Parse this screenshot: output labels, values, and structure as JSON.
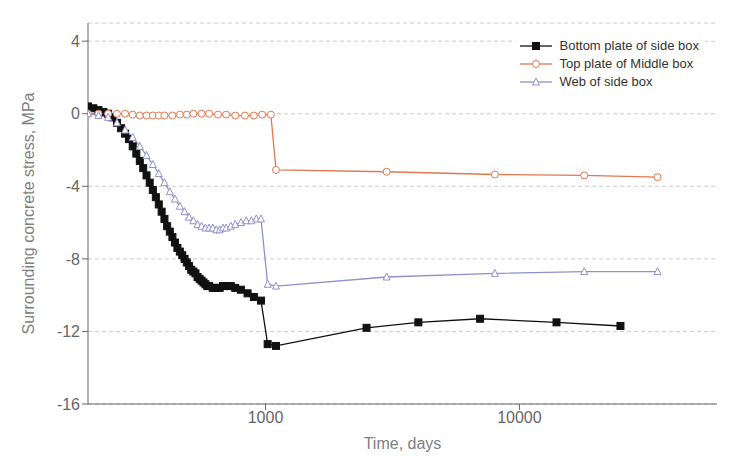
{
  "chart_data": {
    "type": "line",
    "xlabel": "Time, days",
    "ylabel": "Surrounding concrete stress, MPa",
    "log": "x",
    "xlim": [
      200,
      60000
    ],
    "xticks": [
      1000,
      10000
    ],
    "ylim": [
      -16,
      5
    ],
    "yticks": [
      -16,
      -12,
      -8,
      -4,
      0,
      4
    ],
    "grid": "y",
    "legend": "upper right",
    "series": [
      {
        "name": "Bottom plate of side box",
        "color": "#111111",
        "marker": "square",
        "x": [
          200,
          210,
          220,
          230,
          240,
          250,
          260,
          270,
          280,
          290,
          300,
          310,
          320,
          330,
          340,
          350,
          360,
          370,
          380,
          390,
          400,
          410,
          420,
          430,
          440,
          450,
          460,
          470,
          480,
          490,
          500,
          510,
          520,
          530,
          540,
          550,
          560,
          570,
          580,
          590,
          600,
          620,
          640,
          660,
          680,
          700,
          730,
          760,
          800,
          850,
          900,
          960,
          1020,
          1100,
          2500,
          4000,
          7000,
          14000,
          25000
        ],
        "values": [
          0.4,
          0.3,
          0.2,
          0.1,
          0.0,
          -0.2,
          -0.5,
          -0.8,
          -1.1,
          -1.4,
          -1.8,
          -2.2,
          -2.6,
          -3.0,
          -3.4,
          -3.8,
          -4.2,
          -4.6,
          -5.0,
          -5.4,
          -5.8,
          -6.2,
          -6.5,
          -6.8,
          -7.1,
          -7.4,
          -7.6,
          -7.8,
          -8.0,
          -8.2,
          -8.4,
          -8.6,
          -8.7,
          -8.8,
          -9.0,
          -9.1,
          -9.2,
          -9.3,
          -9.4,
          -9.5,
          -9.5,
          -9.6,
          -9.6,
          -9.6,
          -9.5,
          -9.5,
          -9.5,
          -9.6,
          -9.7,
          -9.9,
          -10.1,
          -10.3,
          -12.7,
          -12.8,
          -11.8,
          -11.5,
          -11.3,
          -11.5,
          -11.7
        ]
      },
      {
        "name": "Top plate of Middle box",
        "color": "#e07850",
        "marker": "circle-open",
        "x": [
          200,
          220,
          240,
          260,
          280,
          300,
          320,
          340,
          360,
          380,
          400,
          430,
          460,
          490,
          520,
          560,
          600,
          650,
          700,
          760,
          830,
          900,
          970,
          1050,
          1100,
          3000,
          8000,
          18000,
          35000
        ],
        "values": [
          0.0,
          0.0,
          0.0,
          0.0,
          0.0,
          -0.05,
          -0.1,
          -0.1,
          -0.1,
          -0.1,
          -0.1,
          -0.1,
          -0.05,
          -0.05,
          0.0,
          0.0,
          0.0,
          -0.05,
          -0.05,
          -0.1,
          -0.1,
          -0.1,
          -0.05,
          -0.05,
          -3.1,
          -3.2,
          -3.35,
          -3.4,
          -3.5
        ]
      },
      {
        "name": "Web of side box",
        "color": "#9090cc",
        "marker": "triangle-open",
        "x": [
          200,
          220,
          240,
          260,
          280,
          300,
          320,
          340,
          360,
          380,
          400,
          420,
          440,
          460,
          480,
          500,
          520,
          540,
          560,
          580,
          600,
          620,
          640,
          660,
          680,
          700,
          730,
          760,
          800,
          840,
          880,
          920,
          960,
          1020,
          1100,
          3000,
          8000,
          18000,
          35000
        ],
        "values": [
          0.0,
          -0.1,
          -0.2,
          -0.5,
          -0.9,
          -1.3,
          -1.8,
          -2.3,
          -2.8,
          -3.3,
          -3.8,
          -4.3,
          -4.7,
          -5.1,
          -5.4,
          -5.7,
          -5.9,
          -6.1,
          -6.2,
          -6.3,
          -6.3,
          -6.3,
          -6.4,
          -6.4,
          -6.3,
          -6.3,
          -6.2,
          -6.1,
          -6.0,
          -5.9,
          -5.9,
          -5.8,
          -5.8,
          -9.4,
          -9.5,
          -9.0,
          -8.8,
          -8.7,
          -8.7
        ]
      }
    ]
  }
}
